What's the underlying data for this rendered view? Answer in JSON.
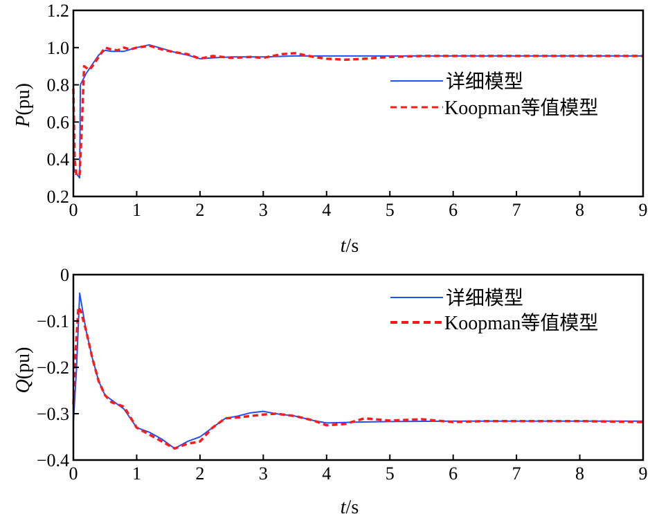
{
  "chart_data": [
    {
      "type": "line",
      "title": "",
      "xlabel": "t/s",
      "ylabel": "P(pu)",
      "xlim": [
        0,
        9
      ],
      "ylim": [
        0.2,
        1.2
      ],
      "xticks": [
        "0",
        "1",
        "2",
        "3",
        "4",
        "5",
        "6",
        "7",
        "8",
        "9"
      ],
      "yticks": [
        "0.2",
        "0.4",
        "0.6",
        "0.8",
        "1.0",
        "1.2"
      ],
      "grid": false,
      "legend_position": "upper right",
      "series": [
        {
          "name": "详细模型",
          "color": "#1f4fff",
          "style": "solid",
          "x": [
            0,
            0.01,
            0.03,
            0.1,
            0.11,
            0.2,
            0.3,
            0.4,
            0.5,
            0.6,
            0.8,
            1.0,
            1.2,
            1.4,
            1.6,
            1.8,
            2.0,
            2.2,
            2.5,
            3.0,
            3.5,
            4.0,
            4.5,
            5.0,
            6.0,
            7.0,
            8.0,
            9.0
          ],
          "y": [
            0.95,
            0.35,
            0.33,
            0.3,
            0.8,
            0.86,
            0.91,
            0.96,
            0.985,
            0.98,
            0.98,
            1.0,
            1.015,
            0.995,
            0.975,
            0.96,
            0.94,
            0.945,
            0.95,
            0.95,
            0.955,
            0.955,
            0.955,
            0.955,
            0.955,
            0.955,
            0.955,
            0.955
          ]
        },
        {
          "name": "Koopman等值模型",
          "color": "#ff1a1a",
          "style": "dashed",
          "x": [
            0,
            0.02,
            0.05,
            0.1,
            0.13,
            0.17,
            0.25,
            0.3,
            0.4,
            0.5,
            0.6,
            0.7,
            0.8,
            0.9,
            1.0,
            1.1,
            1.2,
            1.4,
            1.6,
            1.8,
            2.0,
            2.2,
            2.5,
            2.8,
            3.0,
            3.3,
            3.5,
            3.8,
            4.0,
            4.3,
            4.6,
            5.0,
            5.5,
            6.0,
            7.0,
            8.0,
            9.0
          ],
          "y": [
            0.78,
            0.4,
            0.31,
            0.32,
            0.55,
            0.9,
            0.88,
            0.9,
            0.95,
            1.0,
            0.99,
            0.985,
            1.0,
            0.99,
            1.0,
            1.005,
            1.01,
            0.99,
            0.975,
            0.965,
            0.94,
            0.955,
            0.945,
            0.95,
            0.945,
            0.965,
            0.97,
            0.95,
            0.94,
            0.935,
            0.94,
            0.95,
            0.955,
            0.955,
            0.955,
            0.955,
            0.955
          ]
        }
      ]
    },
    {
      "type": "line",
      "title": "",
      "xlabel": "t/s",
      "ylabel": "Q(pu)",
      "xlim": [
        0,
        9
      ],
      "ylim": [
        -0.4,
        0
      ],
      "xticks": [
        "0",
        "1",
        "2",
        "3",
        "4",
        "5",
        "6",
        "7",
        "8",
        "9"
      ],
      "yticks": [
        "-0.4",
        "-0.3",
        "-0.2",
        "-0.1",
        "0"
      ],
      "grid": false,
      "legend_position": "upper right",
      "series": [
        {
          "name": "详细模型",
          "color": "#1f4fff",
          "style": "solid",
          "x": [
            0,
            0.05,
            0.1,
            0.2,
            0.3,
            0.4,
            0.5,
            0.6,
            0.8,
            1.0,
            1.2,
            1.4,
            1.6,
            1.8,
            2.0,
            2.2,
            2.4,
            2.6,
            2.8,
            3.0,
            3.2,
            3.5,
            3.8,
            4.0,
            4.5,
            5.0,
            6.0,
            7.0,
            8.0,
            9.0
          ],
          "y": [
            -0.32,
            -0.2,
            -0.04,
            -0.12,
            -0.18,
            -0.23,
            -0.26,
            -0.27,
            -0.29,
            -0.33,
            -0.34,
            -0.355,
            -0.375,
            -0.36,
            -0.35,
            -0.33,
            -0.31,
            -0.305,
            -0.298,
            -0.295,
            -0.3,
            -0.305,
            -0.315,
            -0.32,
            -0.318,
            -0.317,
            -0.316,
            -0.316,
            -0.316,
            -0.316
          ]
        },
        {
          "name": "Koopman等值模型",
          "color": "#ff1a1a",
          "style": "dashed",
          "x": [
            0,
            0.03,
            0.08,
            0.12,
            0.2,
            0.3,
            0.4,
            0.5,
            0.6,
            0.8,
            1.0,
            1.2,
            1.4,
            1.6,
            1.8,
            2.0,
            2.2,
            2.4,
            2.6,
            2.8,
            3.0,
            3.2,
            3.5,
            3.8,
            4.0,
            4.3,
            4.6,
            5.0,
            5.5,
            6.0,
            6.5,
            7.0,
            8.0,
            9.0
          ],
          "y": [
            -0.28,
            -0.18,
            -0.07,
            -0.08,
            -0.12,
            -0.18,
            -0.23,
            -0.26,
            -0.275,
            -0.285,
            -0.33,
            -0.345,
            -0.36,
            -0.375,
            -0.365,
            -0.36,
            -0.33,
            -0.31,
            -0.308,
            -0.305,
            -0.302,
            -0.3,
            -0.305,
            -0.315,
            -0.325,
            -0.322,
            -0.31,
            -0.315,
            -0.312,
            -0.318,
            -0.316,
            -0.316,
            -0.316,
            -0.318
          ]
        }
      ]
    }
  ],
  "plots": {
    "p": {
      "ylabel_main": "P",
      "ylabel_unit": "(pu)",
      "xlabel_main": "t",
      "xlabel_unit": "/s"
    },
    "q": {
      "ylabel_main": "Q",
      "ylabel_unit": "(pu)",
      "xlabel_main": "t",
      "xlabel_unit": "/s"
    }
  },
  "legend": {
    "detailed": "详细模型",
    "koopman": "Koopman等值模型"
  },
  "colors": {
    "detailed": "#1f4fff",
    "koopman": "#ff1a1a",
    "axis": "#000000"
  }
}
